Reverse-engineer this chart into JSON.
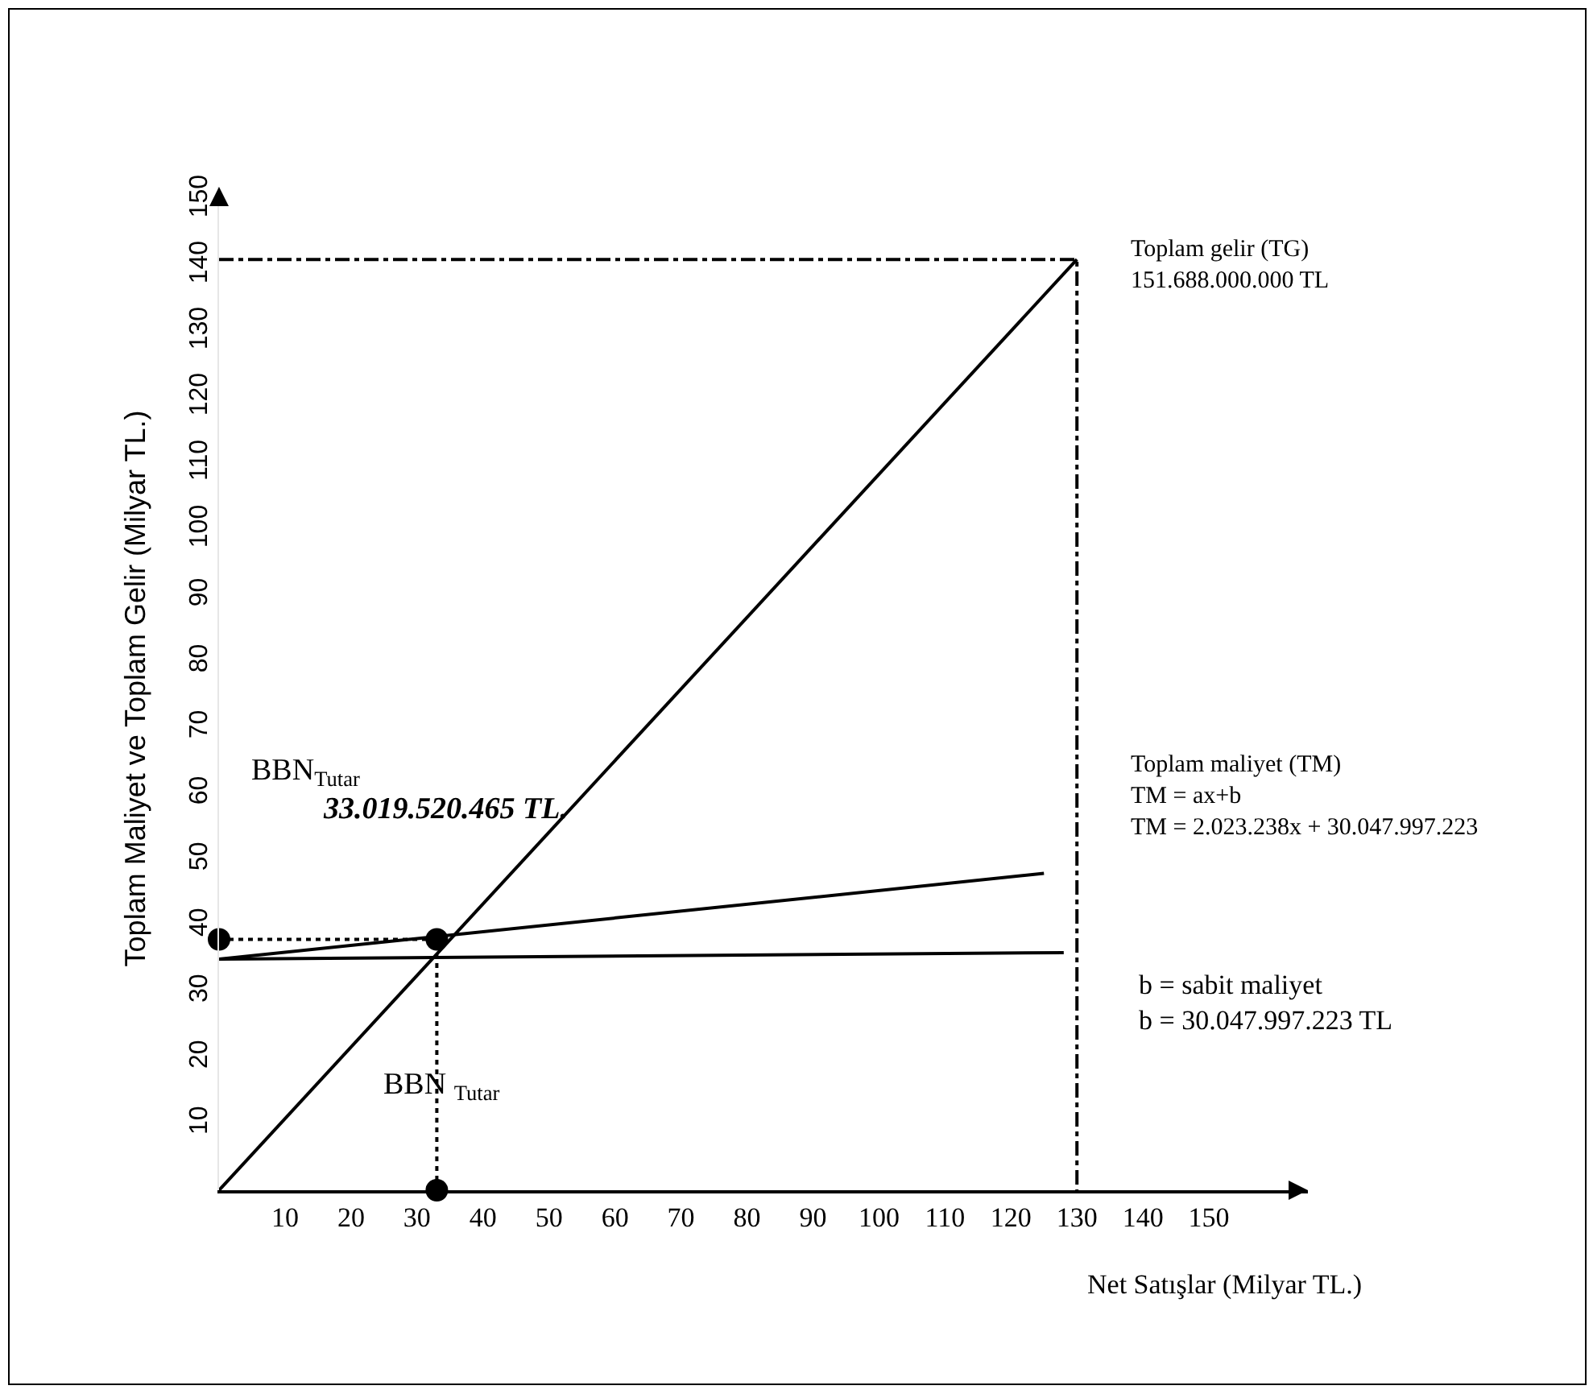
{
  "chart_data": {
    "type": "line",
    "xlabel": "Net Satışlar (Milyar TL.)",
    "ylabel": "Toplam Maliyet ve Toplam Gelir (Milyar TL.)",
    "xlim": [
      0,
      165
    ],
    "ylim": [
      0,
      152
    ],
    "xticks": [
      10,
      20,
      30,
      40,
      50,
      60,
      70,
      80,
      90,
      100,
      110,
      120,
      130,
      140,
      150
    ],
    "yticks": [
      10,
      20,
      30,
      40,
      50,
      60,
      70,
      80,
      90,
      100,
      110,
      120,
      130,
      140,
      150
    ],
    "grid": false,
    "marker": "none",
    "series": [
      {
        "color": "#000000",
        "x": [
          0,
          130
        ],
        "values": [
          0,
          141
        ],
        "line_style": "solid"
      },
      {
        "color": "#000000",
        "x": [
          0,
          125
        ],
        "values": [
          35,
          48
        ],
        "line_style": "solid"
      },
      {
        "color": "#000000",
        "x": [
          0,
          128
        ],
        "values": [
          35,
          36
        ],
        "line_style": "solid"
      },
      {
        "color": "#000000",
        "x": [
          0,
          130,
          130
        ],
        "values": [
          141,
          141,
          0
        ],
        "line_style": "dashed"
      },
      {
        "color": "#000000",
        "x": [
          0,
          33,
          33
        ],
        "values": [
          38,
          38,
          0
        ],
        "line_style": "dotted"
      },
      {
        "type": "scatter",
        "color": "#000000",
        "x": [
          0,
          33,
          33
        ],
        "values": [
          38,
          38,
          0
        ],
        "marker": "circle"
      }
    ],
    "annotations": [
      "Toplam gelir (TG)\n151.688.000.000 TL",
      "Toplam maliyet (TM)\nTM = ax+b\nTM = 2.023.238x + 30.047.997.223",
      "b = sabit maliyet\nb = 30.047.997.223 TL",
      "BBN$_{Tutar}$",
      "33.019.520.465 TL.",
      "BBN $_{Tutar}$"
    ]
  }
}
